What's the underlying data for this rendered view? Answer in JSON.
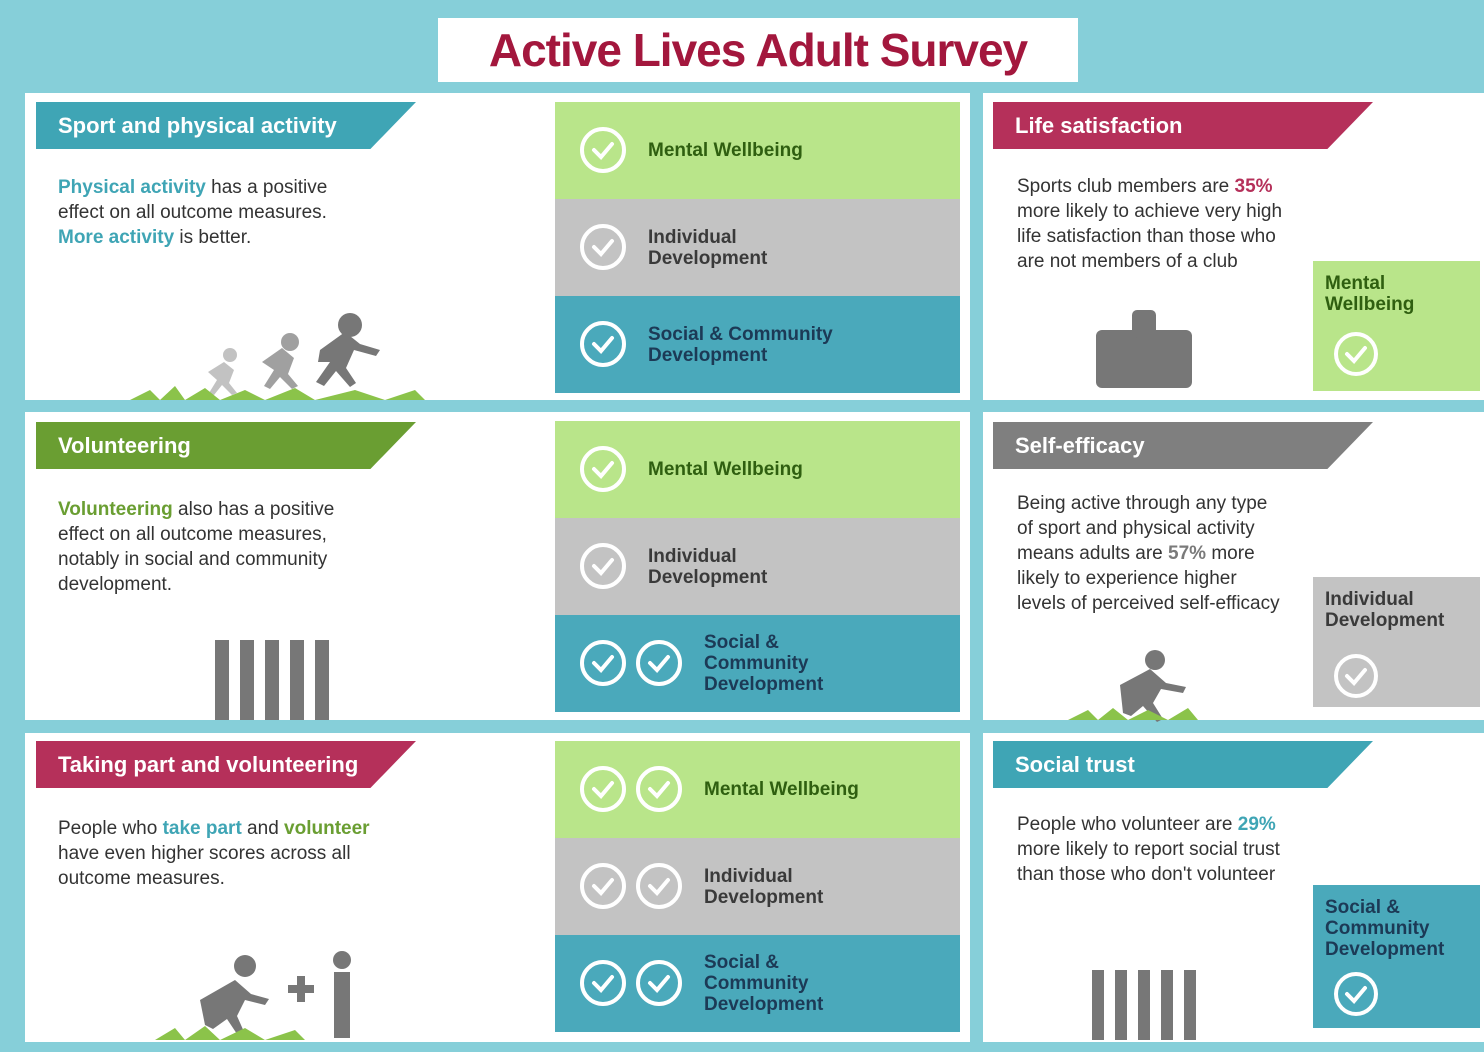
{
  "title": "Active Lives Adult Survey",
  "left_panels": [
    {
      "heading": "Sport and physical activity",
      "body": [
        "Physical activity",
        " has a positive effect on all outcome measures. ",
        "More activity",
        " is better."
      ],
      "outcomes": [
        {
          "label": "Mental Wellbeing",
          "checks": 1
        },
        {
          "label": "Individual Development",
          "checks": 1
        },
        {
          "label": "Social & Community Development",
          "checks": 1
        }
      ]
    },
    {
      "heading": "Volunteering",
      "body": [
        "Volunteering",
        " also has a positive effect on all outcome measures, notably in social and community development."
      ],
      "outcomes": [
        {
          "label": "Mental Wellbeing",
          "checks": 1
        },
        {
          "label": "Individual Development",
          "checks": 1
        },
        {
          "label": "Social & Community Development",
          "checks": 2
        }
      ]
    },
    {
      "heading": "Taking part and volunteering",
      "body": [
        "People who ",
        "take part",
        " and ",
        "volunteer",
        " have even higher scores across all outcome measures."
      ],
      "outcomes": [
        {
          "label": "Mental Wellbeing",
          "checks": 2
        },
        {
          "label": "Individual Development",
          "checks": 2
        },
        {
          "label": "Social & Community Development",
          "checks": 2
        }
      ]
    }
  ],
  "right_panels": [
    {
      "heading": "Life satisfaction",
      "body": [
        "Sports club members are ",
        "35%",
        " more likely to achieve very high life satisfaction than those who are not members of a club"
      ],
      "tag": "Mental Wellbeing"
    },
    {
      "heading": "Self-efficacy",
      "body": [
        "Being active through any type of sport and physical activity means adults are ",
        "57%",
        " more likely to experience higher levels of perceived self-efficacy"
      ],
      "tag": "Individual Development"
    },
    {
      "heading": "Social trust",
      "body": [
        "People who volunteer are ",
        "29%",
        " more likely to report social trust than those who don't volunteer"
      ],
      "tag": "Social & Community Development"
    }
  ]
}
